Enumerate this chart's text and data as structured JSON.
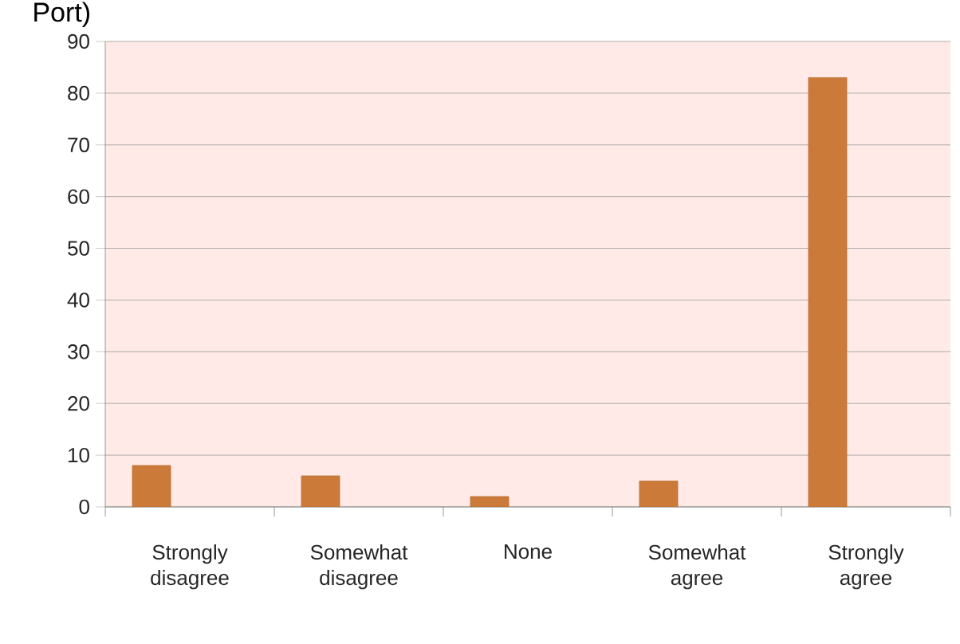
{
  "chart_data": {
    "type": "bar",
    "title": "Port)",
    "categories": [
      "Strongly disagree",
      "Somewhat disagree",
      "None",
      "Somewhat agree",
      "Strongly agree"
    ],
    "values": [
      8,
      6,
      2,
      5,
      83
    ],
    "color": "#cc7a3a",
    "ylim": [
      0,
      90
    ],
    "yticks": [
      0,
      10,
      20,
      30,
      40,
      50,
      60,
      70,
      80,
      90
    ],
    "grid": "y"
  }
}
